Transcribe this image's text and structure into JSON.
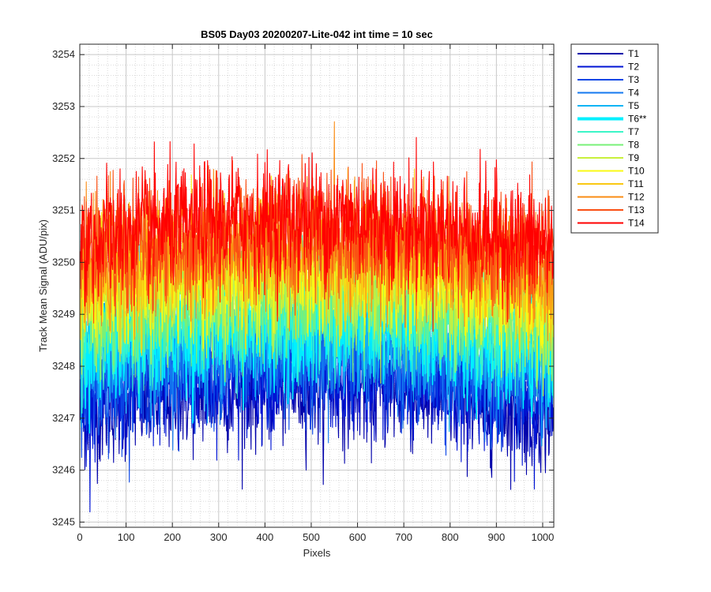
{
  "chart_data": {
    "type": "line",
    "title": "BS05 Day03 20200207-Lite-042 int time = 10 sec",
    "xlabel": "Pixels",
    "ylabel": "Track Mean Signal (ADU/pix)",
    "xlim": [
      0,
      1024
    ],
    "ylim": [
      3244.9,
      3254.2
    ],
    "xticks": [
      0,
      100,
      200,
      300,
      400,
      500,
      600,
      700,
      800,
      900,
      1000
    ],
    "yticks": [
      3245,
      3246,
      3247,
      3248,
      3249,
      3250,
      3251,
      3252,
      3253,
      3254
    ],
    "grid": true,
    "minor_grid": true,
    "legend_position": "outside-top-right",
    "highlighted_series": "T6**",
    "series": [
      {
        "name": "T1",
        "color": "#0000aa",
        "mean": 3247.05,
        "amplitude": 0.65
      },
      {
        "name": "T2",
        "color": "#0014d4",
        "mean": 3247.3,
        "amplitude": 0.65
      },
      {
        "name": "T3",
        "color": "#0a46e6",
        "mean": 3247.6,
        "amplitude": 0.65
      },
      {
        "name": "T4",
        "color": "#1478f0",
        "mean": 3247.85,
        "amplitude": 0.65
      },
      {
        "name": "T5",
        "color": "#10b4f5",
        "mean": 3248.1,
        "amplitude": 0.65
      },
      {
        "name": "T6**",
        "color": "#00f0ff",
        "mean": 3248.35,
        "amplitude": 0.7
      },
      {
        "name": "T7",
        "color": "#3cf5c8",
        "mean": 3248.55,
        "amplitude": 0.65
      },
      {
        "name": "T8",
        "color": "#78f078",
        "mean": 3248.8,
        "amplitude": 0.65
      },
      {
        "name": "T9",
        "color": "#c8f03c",
        "mean": 3249.05,
        "amplitude": 0.65
      },
      {
        "name": "T10",
        "color": "#fafa14",
        "mean": 3249.3,
        "amplitude": 0.65
      },
      {
        "name": "T11",
        "color": "#fac814",
        "mean": 3249.55,
        "amplitude": 0.65
      },
      {
        "name": "T12",
        "color": "#fa8c14",
        "mean": 3249.8,
        "amplitude": 0.65
      },
      {
        "name": "T13",
        "color": "#fa5014",
        "mean": 3250.05,
        "amplitude": 0.7
      },
      {
        "name": "T14",
        "color": "#ff0000",
        "mean": 3250.3,
        "amplitude": 0.7
      }
    ]
  }
}
